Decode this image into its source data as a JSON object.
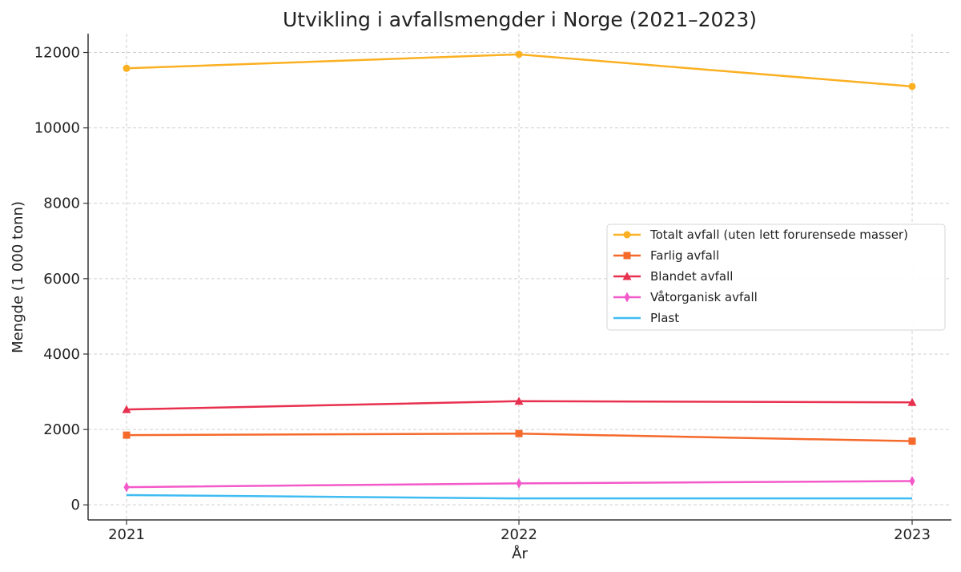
{
  "chart_data": {
    "type": "line",
    "title": "Utvikling i avfallsmengder i Norge (2021–2023)",
    "xlabel": "År",
    "ylabel": "Mengde (1 000 tonn)",
    "categories": [
      "2021",
      "2022",
      "2023"
    ],
    "ylim": [
      -400,
      12500
    ],
    "yticks": [
      0,
      2000,
      4000,
      6000,
      8000,
      10000,
      12000
    ],
    "grid": true,
    "legend_position": "center-right",
    "series": [
      {
        "name": "Totalt avfall (uten lett forurensede masser)",
        "color": "#FBB022",
        "marker": "circle",
        "values": [
          11580,
          11950,
          11100
        ]
      },
      {
        "name": "Farlig avfall",
        "color": "#F5692A",
        "marker": "square",
        "values": [
          1850,
          1890,
          1690
        ]
      },
      {
        "name": "Blandet avfall",
        "color": "#E8304F",
        "marker": "triangle",
        "values": [
          2530,
          2750,
          2720
        ]
      },
      {
        "name": "Våtorganisk avfall",
        "color": "#F359C9",
        "marker": "diamond",
        "values": [
          470,
          570,
          630
        ]
      },
      {
        "name": "Plast",
        "color": "#3FBCF2",
        "marker": "none",
        "values": [
          260,
          170,
          170
        ]
      }
    ]
  }
}
